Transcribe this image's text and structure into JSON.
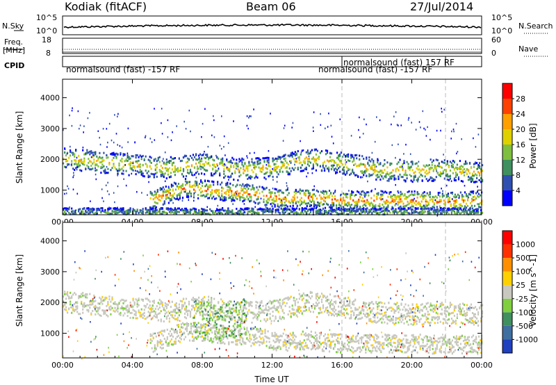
{
  "header": {
    "station": "Kodiak (fitACF)",
    "beam": "Beam 06",
    "date": "27/Jul/2014"
  },
  "top_panel": {
    "left_label": "N.Sky",
    "right_label": "N.Search",
    "left_ticks": [
      "10^5",
      "10^0"
    ],
    "right_ticks": [
      "10^5",
      "10^0"
    ]
  },
  "freq_panel": {
    "label_top": "Freq.",
    "label_unit": "[MHz]",
    "right_label": "Nave",
    "left_ticks": [
      "18",
      "8"
    ],
    "right_ticks": [
      "60",
      "0"
    ]
  },
  "cpid": {
    "label": "CPID",
    "segments": [
      "normalsound (fast) -157 RF",
      "normalsound (fast) 157 RF",
      "normalsound (fast) -157 RF"
    ]
  },
  "chart_data": [
    {
      "type": "heatmap",
      "name": "power",
      "ylabel": "Slant Range [km]",
      "yticks": [
        "1000",
        "2000",
        "3000",
        "4000"
      ],
      "ylim": [
        200,
        4600
      ],
      "x_ticks": [
        "00:00",
        "04:00",
        "08:00",
        "12:00",
        "16:00",
        "20:00",
        "00:00"
      ],
      "colorbar": {
        "label": "Power [dB]",
        "ticks": [
          "4",
          "8",
          "12",
          "16",
          "20",
          "24",
          "28"
        ],
        "colors": [
          "#0000ff",
          "#2f4fb0",
          "#3f8f5f",
          "#7fbf3f",
          "#dfd000",
          "#ff9f00",
          "#ff4000",
          "#ff0000"
        ]
      },
      "bands": [
        {
          "x": [
            0,
            3,
            6,
            8,
            10,
            12,
            14,
            16,
            18,
            20,
            22,
            24
          ],
          "y": [
            2050,
            1900,
            1750,
            1900,
            1700,
            1750,
            2050,
            1900,
            1700,
            1650,
            1700,
            1600
          ],
          "w": 350,
          "level": 0.55
        },
        {
          "x": [
            5,
            7,
            9,
            11,
            12.5,
            14,
            16,
            18,
            20,
            22,
            24
          ],
          "y": [
            700,
            1100,
            1000,
            900,
            750,
            800,
            700,
            700,
            700,
            650,
            700
          ],
          "w": 300,
          "level": 0.7
        },
        {
          "x": [
            0,
            4,
            8,
            12,
            16,
            20,
            24
          ],
          "y": [
            300,
            300,
            300,
            300,
            300,
            300,
            300
          ],
          "w": 150,
          "level": 0.3
        }
      ]
    },
    {
      "type": "heatmap",
      "name": "velocity",
      "ylabel": "Slant Range [km]",
      "yticks": [
        "1000",
        "2000",
        "3000",
        "4000"
      ],
      "ylim": [
        200,
        4600
      ],
      "x_ticks": [
        "00:00",
        "04:00",
        "08:00",
        "12:00",
        "16:00",
        "20:00",
        "00:00"
      ],
      "xlabel": "Time UT",
      "colorbar": {
        "label": "Velocity [m s^-1]",
        "ticks": [
          "1000",
          "500",
          "100",
          "25",
          "-25",
          "-100",
          "-500",
          "-1000"
        ],
        "colors": [
          "#2040c0",
          "#3f6fa0",
          "#3f8f5f",
          "#7fcf3f",
          "#c8c8c0",
          "#ffd000",
          "#ff8f00",
          "#ff3000",
          "#ff0000"
        ]
      },
      "bands": [
        {
          "x": [
            0,
            3,
            6,
            8,
            10,
            12,
            14,
            16,
            18,
            20,
            22,
            24
          ],
          "y": [
            2050,
            1900,
            1750,
            1900,
            1700,
            1750,
            2050,
            1900,
            1700,
            1650,
            1700,
            1600
          ],
          "w": 350,
          "level": 0.45
        },
        {
          "x": [
            5,
            7,
            9,
            11,
            12.5,
            14,
            16,
            18,
            20,
            22,
            24
          ],
          "y": [
            700,
            1100,
            1000,
            900,
            750,
            800,
            700,
            700,
            700,
            650,
            700
          ],
          "w": 300,
          "level": 0.45
        },
        {
          "x": [
            7.5,
            8.5,
            9.5,
            10.5
          ],
          "y": [
            1500,
            1350,
            1400,
            1600
          ],
          "w": 600,
          "level": 0.3
        }
      ]
    }
  ]
}
